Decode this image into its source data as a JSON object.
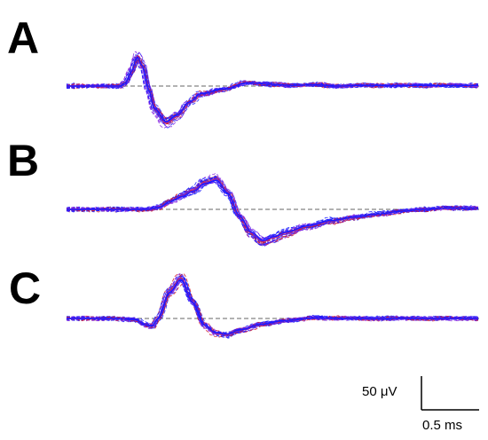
{
  "chart_data": [
    {
      "type": "line",
      "panel_label": "A",
      "baseline": 0,
      "mean_trace": {
        "x": [
          0,
          0.1,
          0.2,
          0.3,
          0.35,
          0.4,
          0.45,
          0.5,
          0.55,
          0.6,
          0.7,
          0.8,
          0.9,
          1.0,
          1.2,
          1.4,
          1.6,
          1.8,
          2.0,
          2.2,
          2.4
        ],
        "y": [
          0,
          0,
          0,
          0,
          5,
          22,
          45,
          30,
          -5,
          -35,
          -55,
          -45,
          -25,
          -12,
          -5,
          5,
          3,
          1,
          2,
          0,
          1
        ]
      },
      "series_colors": [
        "#1a1aff",
        "#8a2be2",
        "#d01e2e"
      ]
    },
    {
      "type": "line",
      "panel_label": "B",
      "baseline": 0,
      "mean_trace": {
        "x": [
          0,
          0.2,
          0.3,
          0.4,
          0.5,
          0.6,
          0.7,
          0.8,
          0.9,
          1.0,
          1.1,
          1.2,
          1.3,
          1.4,
          1.6,
          1.8,
          2.0,
          2.2,
          2.4,
          2.6,
          2.8
        ],
        "y": [
          0,
          0,
          3,
          12,
          20,
          28,
          40,
          45,
          25,
          -10,
          -35,
          -48,
          -42,
          -35,
          -25,
          -17,
          -12,
          -7,
          -3,
          0,
          2
        ]
      },
      "series_colors": [
        "#1a1aff",
        "#8a2be2",
        "#d01e2e"
      ]
    },
    {
      "type": "line",
      "panel_label": "C",
      "baseline": 0,
      "mean_trace": {
        "x": [
          0,
          0.2,
          0.4,
          0.5,
          0.55,
          0.6,
          0.7,
          0.8,
          0.9,
          1.0,
          1.1,
          1.2,
          1.3,
          1.5,
          1.7,
          2.0,
          2.3,
          2.6
        ],
        "y": [
          0,
          0,
          -2,
          -10,
          -12,
          0,
          40,
          60,
          25,
          -10,
          -22,
          -24,
          -18,
          -9,
          -3,
          1,
          0,
          0
        ]
      },
      "series_colors": [
        "#1a1aff",
        "#8a2be2",
        "#d01e2e"
      ]
    }
  ],
  "scale_bar": {
    "vertical_label": "50 μV",
    "horizontal_label": "0.5 ms",
    "vertical_value_uV": 50,
    "horizontal_value_ms": 0.5
  }
}
